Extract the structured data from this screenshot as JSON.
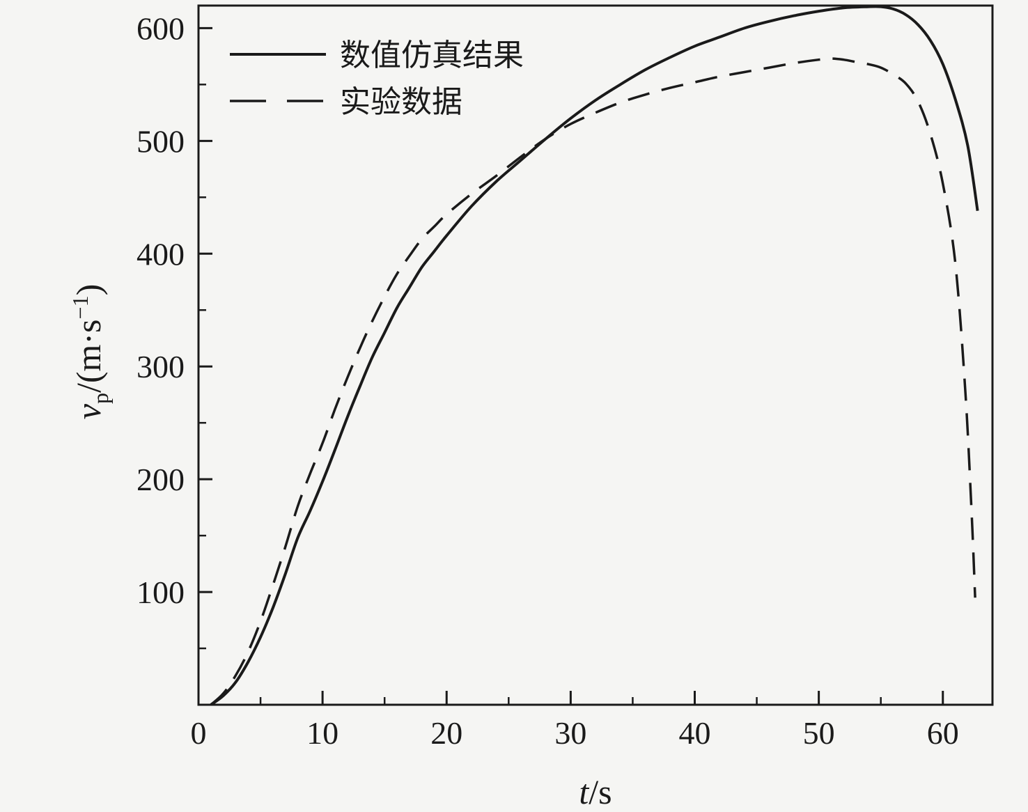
{
  "figure": {
    "background": "#f5f5f3",
    "line_color": "#1a1a1a"
  },
  "labels": {
    "x_var": "t",
    "x_rest": "/s",
    "y_var": "v",
    "y_sub": "p",
    "y_rest": "/(m·s",
    "y_sup": "−1",
    "y_close": ")"
  },
  "chart_data": {
    "type": "line",
    "title": "",
    "xlabel": "t/s",
    "ylabel": "vp/(m·s⁻¹)",
    "xlim": [
      0,
      64
    ],
    "ylim": [
      0,
      620
    ],
    "x_ticks": [
      0,
      10,
      20,
      30,
      40,
      50,
      60
    ],
    "x_minor_step": 5,
    "y_ticks": [
      100,
      200,
      300,
      400,
      500,
      600
    ],
    "y_minor_step": 50,
    "grid": "off",
    "legend_position": "top-left-inside",
    "series": [
      {
        "name": "数值仿真结果",
        "style": "solid",
        "color": "#1a1a1a",
        "points": [
          [
            1,
            0
          ],
          [
            2,
            8
          ],
          [
            3,
            20
          ],
          [
            4,
            38
          ],
          [
            5,
            60
          ],
          [
            6,
            86
          ],
          [
            7,
            116
          ],
          [
            8,
            148
          ],
          [
            9,
            172
          ],
          [
            10,
            198
          ],
          [
            11,
            226
          ],
          [
            12,
            255
          ],
          [
            13,
            282
          ],
          [
            14,
            308
          ],
          [
            15,
            330
          ],
          [
            16,
            352
          ],
          [
            17,
            370
          ],
          [
            18,
            388
          ],
          [
            19,
            402
          ],
          [
            20,
            416
          ],
          [
            22,
            442
          ],
          [
            24,
            464
          ],
          [
            26,
            483
          ],
          [
            28,
            502
          ],
          [
            30,
            520
          ],
          [
            32,
            536
          ],
          [
            34,
            550
          ],
          [
            36,
            563
          ],
          [
            38,
            574
          ],
          [
            40,
            584
          ],
          [
            42,
            592
          ],
          [
            44,
            600
          ],
          [
            46,
            606
          ],
          [
            48,
            611
          ],
          [
            50,
            615
          ],
          [
            52,
            618
          ],
          [
            54,
            619
          ],
          [
            55,
            619
          ],
          [
            56,
            617
          ],
          [
            57,
            612
          ],
          [
            58,
            603
          ],
          [
            59,
            589
          ],
          [
            60,
            568
          ],
          [
            61,
            537
          ],
          [
            62,
            496
          ],
          [
            62.8,
            438
          ]
        ]
      },
      {
        "name": "实验数据",
        "style": "dashed",
        "color": "#1a1a1a",
        "points": [
          [
            1,
            0
          ],
          [
            2,
            10
          ],
          [
            3,
            26
          ],
          [
            4,
            47
          ],
          [
            5,
            74
          ],
          [
            6,
            106
          ],
          [
            7,
            140
          ],
          [
            8,
            176
          ],
          [
            9,
            205
          ],
          [
            10,
            232
          ],
          [
            11,
            262
          ],
          [
            12,
            290
          ],
          [
            13,
            316
          ],
          [
            14,
            340
          ],
          [
            15,
            362
          ],
          [
            16,
            382
          ],
          [
            17,
            398
          ],
          [
            18,
            413
          ],
          [
            19,
            424
          ],
          [
            20,
            435
          ],
          [
            22,
            453
          ],
          [
            24,
            469
          ],
          [
            26,
            486
          ],
          [
            28,
            502
          ],
          [
            30,
            515
          ],
          [
            32,
            525
          ],
          [
            34,
            534
          ],
          [
            36,
            541
          ],
          [
            38,
            547
          ],
          [
            40,
            552
          ],
          [
            42,
            557
          ],
          [
            44,
            561
          ],
          [
            46,
            565
          ],
          [
            48,
            569
          ],
          [
            50,
            572
          ],
          [
            51,
            573
          ],
          [
            52,
            572
          ],
          [
            53,
            570
          ],
          [
            54,
            568
          ],
          [
            55,
            565
          ],
          [
            56,
            559
          ],
          [
            57,
            551
          ],
          [
            58,
            535
          ],
          [
            59,
            506
          ],
          [
            60,
            462
          ],
          [
            61,
            392
          ],
          [
            61.8,
            280
          ],
          [
            62.3,
            175
          ],
          [
            62.6,
            95
          ]
        ]
      }
    ]
  }
}
